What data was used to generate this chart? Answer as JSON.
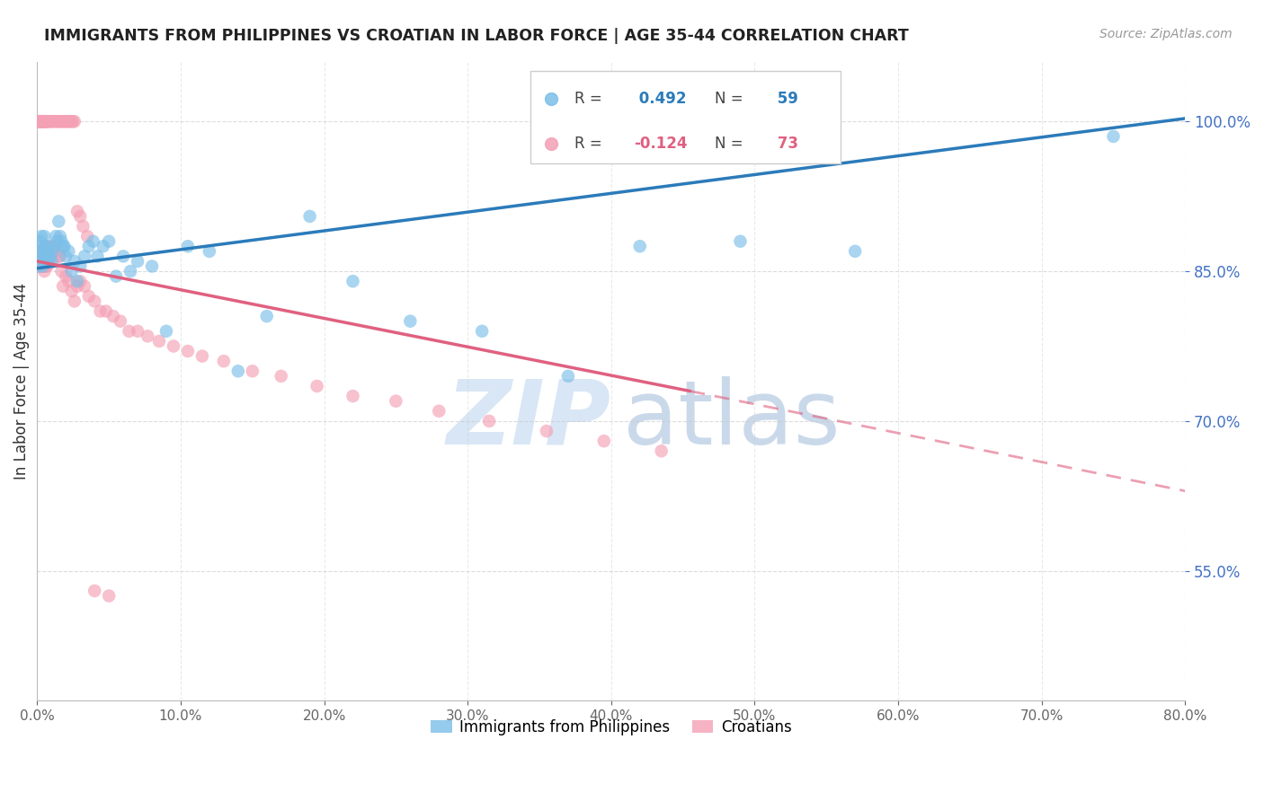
{
  "title": "IMMIGRANTS FROM PHILIPPINES VS CROATIAN IN LABOR FORCE | AGE 35-44 CORRELATION CHART",
  "source": "Source: ZipAtlas.com",
  "ylabel": "In Labor Force | Age 35-44",
  "xlim": [
    0.0,
    0.8
  ],
  "ylim": [
    0.42,
    1.06
  ],
  "yticks": [
    0.55,
    0.7,
    0.85,
    1.0
  ],
  "xticks": [
    0.0,
    0.1,
    0.2,
    0.3,
    0.4,
    0.5,
    0.6,
    0.7,
    0.8
  ],
  "blue_R": 0.492,
  "blue_N": 59,
  "pink_R": -0.124,
  "pink_N": 73,
  "blue_color": "#7bbfe8",
  "pink_color": "#f4a0b5",
  "blue_line_color": "#2b7bba",
  "pink_line_color": "#e06080",
  "legend_label_blue": "Immigrants from Philippines",
  "legend_label_pink": "Croatians",
  "background_color": "#ffffff",
  "grid_color": "#cccccc",
  "title_color": "#222222",
  "axis_label_color": "#333333",
  "ytick_color": "#4472c4",
  "xtick_color": "#666666",
  "blue_scatter_x": [
    0.001,
    0.001,
    0.002,
    0.002,
    0.003,
    0.003,
    0.003,
    0.004,
    0.004,
    0.005,
    0.005,
    0.006,
    0.006,
    0.007,
    0.007,
    0.008,
    0.008,
    0.009,
    0.01,
    0.011,
    0.012,
    0.013,
    0.014,
    0.015,
    0.016,
    0.017,
    0.018,
    0.019,
    0.02,
    0.022,
    0.024,
    0.026,
    0.028,
    0.03,
    0.033,
    0.036,
    0.039,
    0.042,
    0.046,
    0.05,
    0.055,
    0.06,
    0.065,
    0.07,
    0.08,
    0.09,
    0.105,
    0.12,
    0.14,
    0.16,
    0.19,
    0.22,
    0.26,
    0.31,
    0.37,
    0.42,
    0.49,
    0.57,
    0.75
  ],
  "blue_scatter_y": [
    0.855,
    0.87,
    0.865,
    0.88,
    0.86,
    0.875,
    0.885,
    0.87,
    0.855,
    0.87,
    0.885,
    0.875,
    0.86,
    0.875,
    0.865,
    0.87,
    0.86,
    0.865,
    0.86,
    0.87,
    0.875,
    0.885,
    0.88,
    0.9,
    0.885,
    0.88,
    0.875,
    0.875,
    0.865,
    0.87,
    0.85,
    0.86,
    0.84,
    0.855,
    0.865,
    0.875,
    0.88,
    0.865,
    0.875,
    0.88,
    0.845,
    0.865,
    0.85,
    0.86,
    0.855,
    0.79,
    0.875,
    0.87,
    0.75,
    0.805,
    0.905,
    0.84,
    0.8,
    0.79,
    0.745,
    0.875,
    0.88,
    0.87,
    0.985
  ],
  "pink_scatter_x": [
    0.001,
    0.001,
    0.001,
    0.001,
    0.002,
    0.002,
    0.002,
    0.002,
    0.002,
    0.003,
    0.003,
    0.003,
    0.003,
    0.003,
    0.004,
    0.004,
    0.004,
    0.004,
    0.005,
    0.005,
    0.005,
    0.005,
    0.006,
    0.006,
    0.006,
    0.007,
    0.007,
    0.007,
    0.008,
    0.008,
    0.009,
    0.01,
    0.011,
    0.012,
    0.013,
    0.014,
    0.015,
    0.016,
    0.017,
    0.018,
    0.02,
    0.022,
    0.024,
    0.026,
    0.028,
    0.03,
    0.033,
    0.036,
    0.04,
    0.044,
    0.048,
    0.053,
    0.058,
    0.064,
    0.07,
    0.077,
    0.085,
    0.095,
    0.105,
    0.115,
    0.13,
    0.15,
    0.17,
    0.195,
    0.22,
    0.25,
    0.28,
    0.315,
    0.355,
    0.395,
    0.435,
    0.04,
    0.05
  ],
  "pink_scatter_y": [
    1.0,
    1.0,
    1.0,
    0.87,
    1.0,
    1.0,
    1.0,
    0.87,
    0.855,
    1.0,
    1.0,
    0.87,
    0.86,
    0.855,
    1.0,
    0.87,
    0.86,
    0.855,
    0.87,
    0.86,
    0.855,
    0.85,
    0.875,
    0.865,
    0.855,
    0.875,
    0.865,
    0.855,
    0.87,
    0.86,
    0.865,
    0.875,
    0.86,
    0.87,
    0.875,
    0.87,
    0.865,
    0.865,
    0.85,
    0.835,
    0.845,
    0.84,
    0.83,
    0.82,
    0.835,
    0.84,
    0.835,
    0.825,
    0.82,
    0.81,
    0.81,
    0.805,
    0.8,
    0.79,
    0.79,
    0.785,
    0.78,
    0.775,
    0.77,
    0.765,
    0.76,
    0.75,
    0.745,
    0.735,
    0.725,
    0.72,
    0.71,
    0.7,
    0.69,
    0.68,
    0.67,
    0.53,
    0.525
  ],
  "pink_top_x": [
    0.001,
    0.002,
    0.002,
    0.003,
    0.003,
    0.004,
    0.004,
    0.005,
    0.005,
    0.006,
    0.006,
    0.007,
    0.007,
    0.008,
    0.008,
    0.009,
    0.01,
    0.011,
    0.012,
    0.013,
    0.014,
    0.015,
    0.016,
    0.017,
    0.018,
    0.019,
    0.02,
    0.021,
    0.022,
    0.023,
    0.024,
    0.025,
    0.026,
    0.028,
    0.03,
    0.032,
    0.035
  ],
  "pink_top_y": [
    1.0,
    1.0,
    1.0,
    1.0,
    1.0,
    1.0,
    1.0,
    1.0,
    1.0,
    1.0,
    1.0,
    1.0,
    1.0,
    1.0,
    1.0,
    1.0,
    1.0,
    1.0,
    1.0,
    1.0,
    1.0,
    1.0,
    1.0,
    1.0,
    1.0,
    1.0,
    1.0,
    1.0,
    1.0,
    1.0,
    1.0,
    1.0,
    1.0,
    0.91,
    0.905,
    0.895,
    0.885
  ],
  "blue_line_x0": 0.0,
  "blue_line_x1": 0.8,
  "blue_line_y0": 0.853,
  "blue_line_y1": 1.003,
  "pink_line_x0": 0.0,
  "pink_line_x1": 0.455,
  "pink_line_y0": 0.86,
  "pink_line_y1": 0.73,
  "pink_line_dash_x0": 0.455,
  "pink_line_dash_x1": 0.8,
  "pink_line_dash_y0": 0.73,
  "pink_line_dash_y1": 0.63,
  "watermark_zip_color": "#d4e4f4",
  "watermark_atlas_color": "#c5d5e8"
}
